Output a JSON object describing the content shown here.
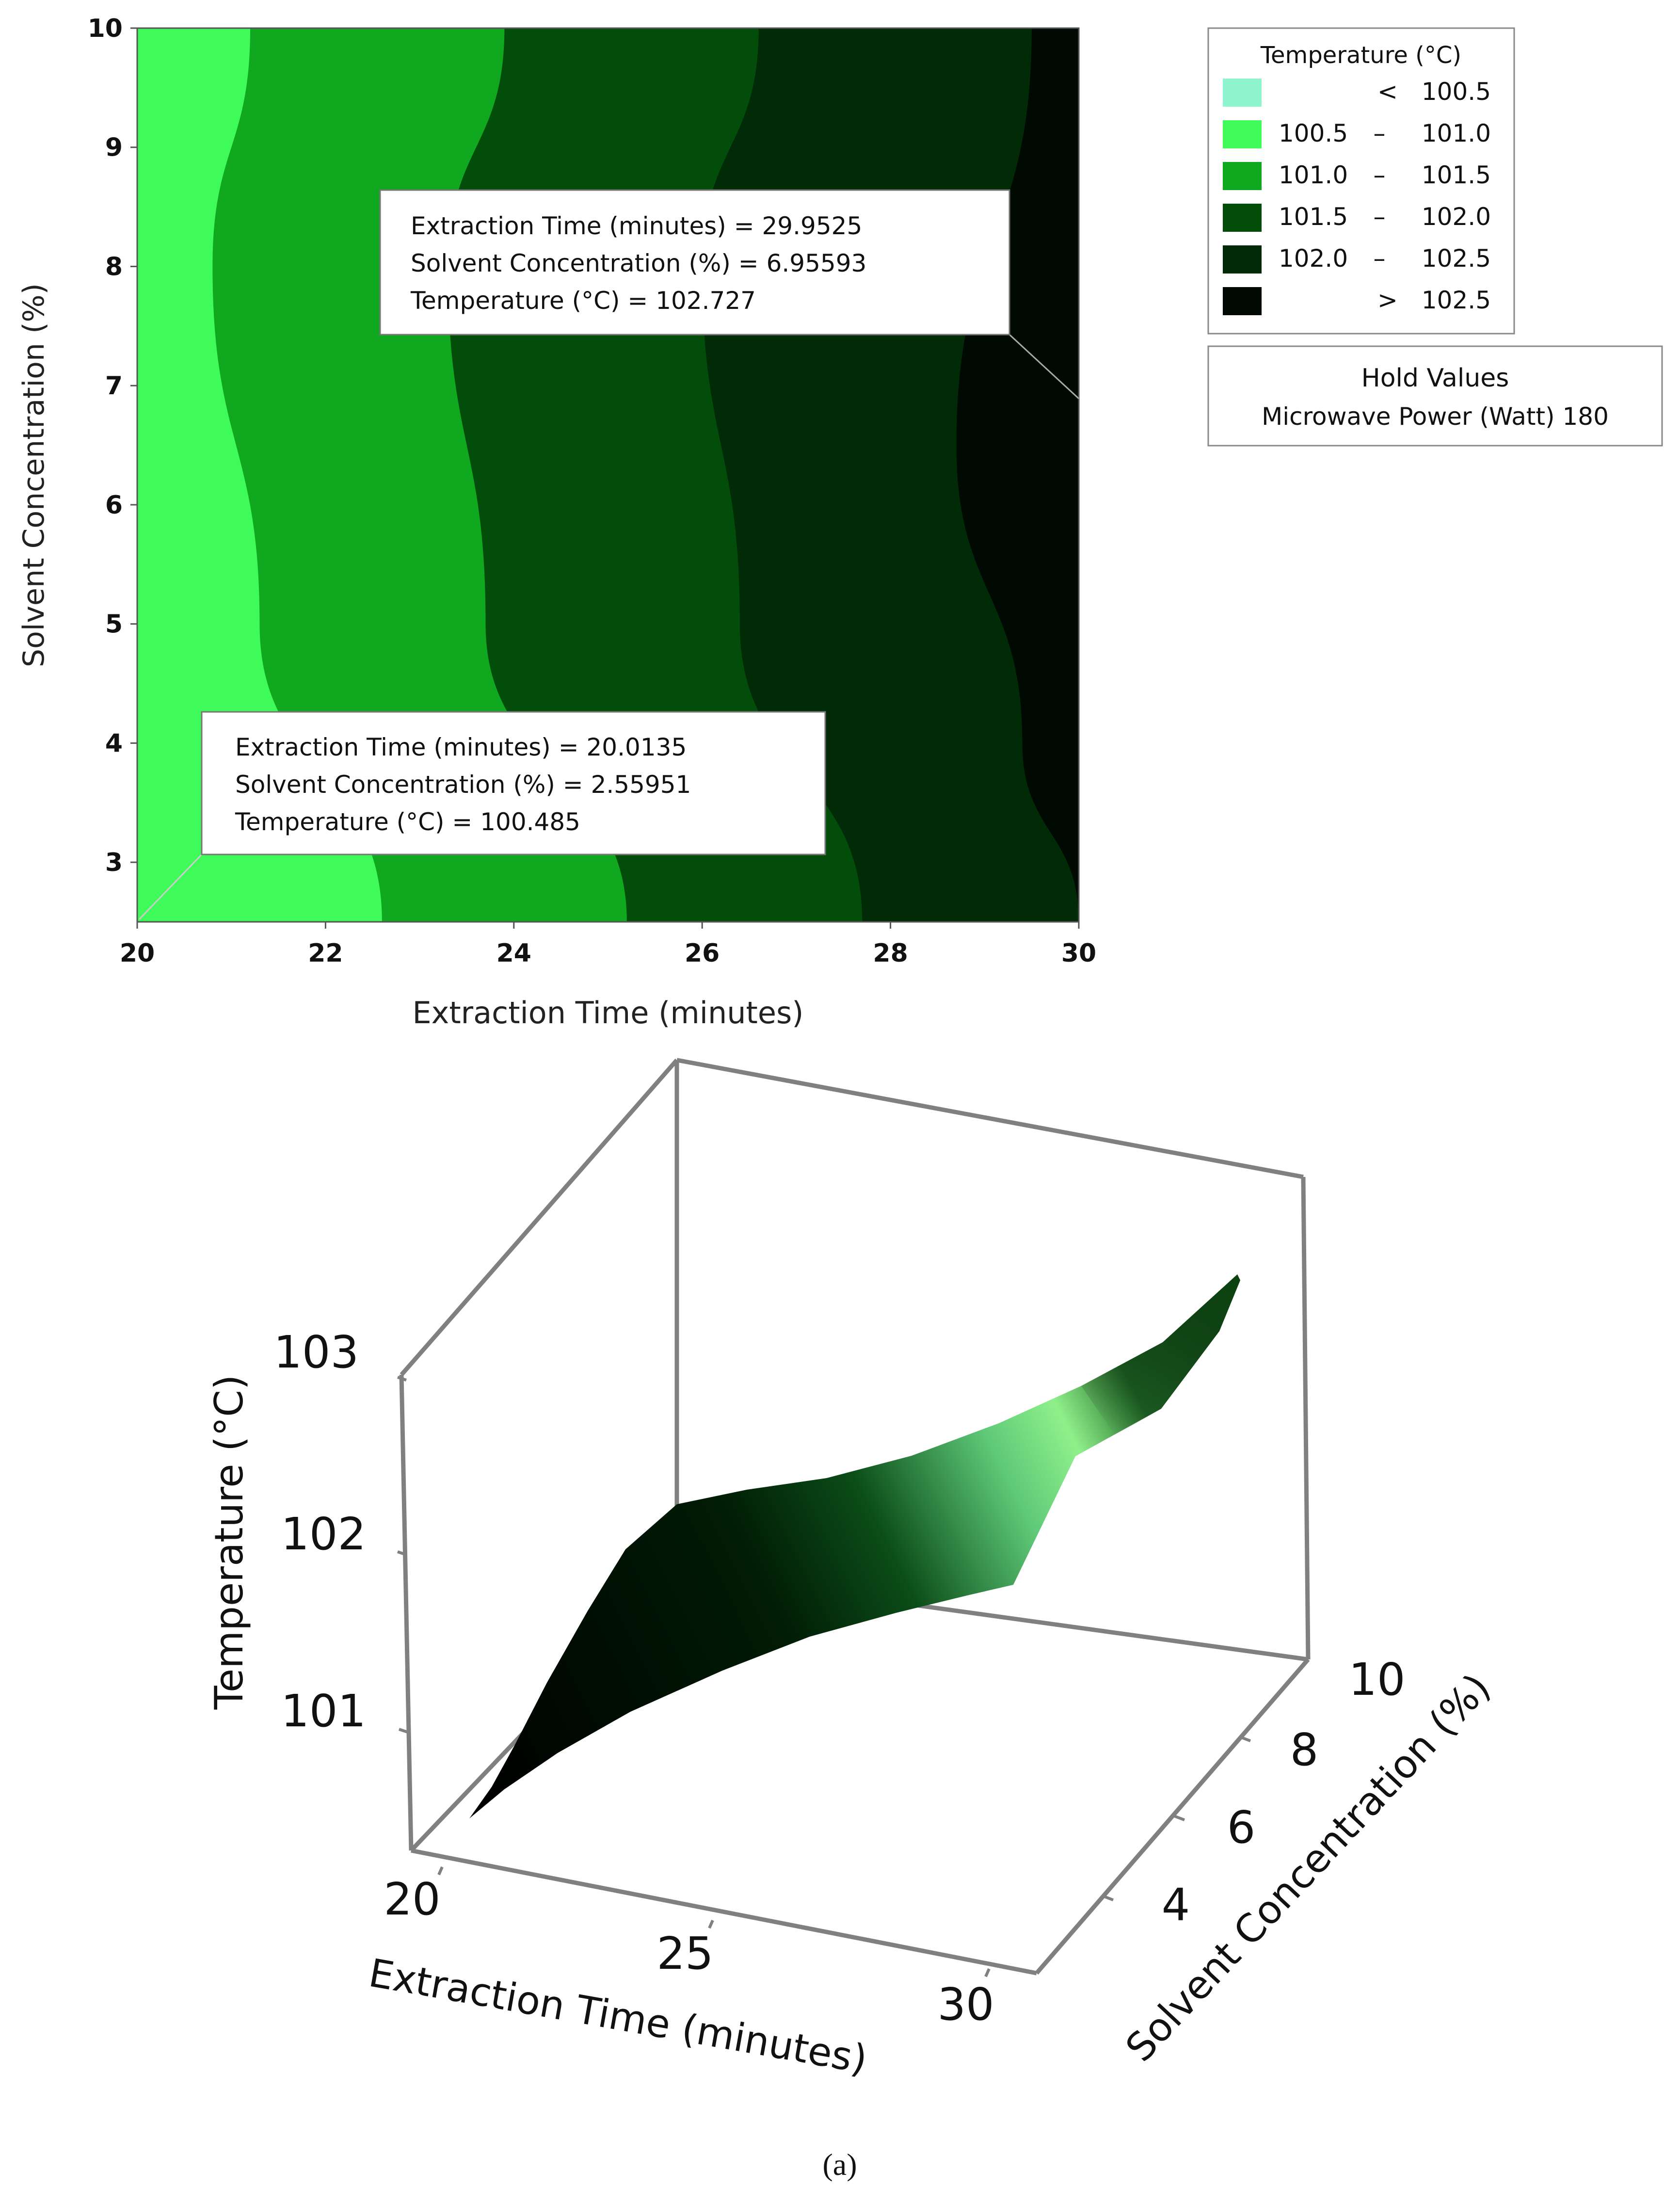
{
  "chart_data": [
    {
      "type": "contour",
      "xlabel": "Extraction Time (minutes)",
      "ylabel": "Solvent Concentration (%)",
      "xlim": [
        20,
        30
      ],
      "ylim": [
        2.5,
        10
      ],
      "xticks": [
        "20",
        "22",
        "24",
        "26",
        "28",
        "30"
      ],
      "yticks": [
        "3",
        "4",
        "5",
        "6",
        "7",
        "8",
        "9",
        "10"
      ],
      "legend": {
        "title": "Temperature (°C)",
        "entries": [
          {
            "op": "<",
            "low": "",
            "high": "100.5",
            "color": "#8ff5cf"
          },
          {
            "op": "–",
            "low": "100.5",
            "high": "101.0",
            "color": "#3ffb5a"
          },
          {
            "op": "–",
            "low": "101.0",
            "high": "101.5",
            "color": "#0fa81f"
          },
          {
            "op": "–",
            "low": "101.5",
            "high": "102.0",
            "color": "#034d0a"
          },
          {
            "op": "–",
            "low": "102.0",
            "high": "102.5",
            "color": "#012b06"
          },
          {
            "op": ">",
            "low": "",
            "high": "102.5",
            "color": "#000a02"
          }
        ]
      },
      "hold_values": {
        "title": "Hold Values",
        "text": "Microwave Power (Watt) 180"
      },
      "contour_levels": [
        {
          "level": 101.0,
          "t_at_y": [
            {
              "y": 2.5,
              "t": 22.6
            },
            {
              "y": 5.0,
              "t": 21.3
            },
            {
              "y": 8.0,
              "t": 20.8
            },
            {
              "y": 10.0,
              "t": 21.2
            }
          ]
        },
        {
          "level": 101.5,
          "t_at_y": [
            {
              "y": 2.5,
              "t": 25.2
            },
            {
              "y": 5.0,
              "t": 23.7
            },
            {
              "y": 8.0,
              "t": 23.3
            },
            {
              "y": 10.0,
              "t": 23.9
            }
          ]
        },
        {
          "level": 102.0,
          "t_at_y": [
            {
              "y": 2.5,
              "t": 27.7
            },
            {
              "y": 5.0,
              "t": 26.4
            },
            {
              "y": 8.0,
              "t": 26.0
            },
            {
              "y": 10.0,
              "t": 26.6
            }
          ]
        },
        {
          "level": 102.5,
          "t_at_y": [
            {
              "y": 2.5,
              "t": 30.0
            },
            {
              "y": 4.0,
              "t": 29.4
            },
            {
              "y": 6.5,
              "t": 28.7
            },
            {
              "y": 10.0,
              "t": 29.5
            }
          ]
        }
      ],
      "annotations": [
        {
          "lines": [
            "Extraction Time (minutes) = 29.9525",
            "Solvent Concentration (%) = 6.95593",
            "Temperature (°C) = 102.727"
          ],
          "x": 29.9525,
          "y": 6.95593
        },
        {
          "lines": [
            "Extraction Time (minutes) = 20.0135",
            "Solvent Concentration (%) = 2.55951",
            "Temperature (°C) = 100.485"
          ],
          "x": 20.0135,
          "y": 2.55951
        }
      ]
    },
    {
      "type": "surface",
      "xlabel": "Extraction Time (minutes)",
      "ylabel": "Solvent Concentration (%)",
      "zlabel": "Temperature (°C)",
      "xticks": [
        "20",
        "25",
        "30"
      ],
      "yticks": [
        "4",
        "6",
        "8",
        "10"
      ],
      "zticks": [
        "101",
        "102",
        "103"
      ],
      "xlim": [
        20,
        30
      ],
      "ylim": [
        2.5,
        10
      ],
      "zlim": [
        100.3,
        103
      ]
    }
  ],
  "caption": "(a)"
}
